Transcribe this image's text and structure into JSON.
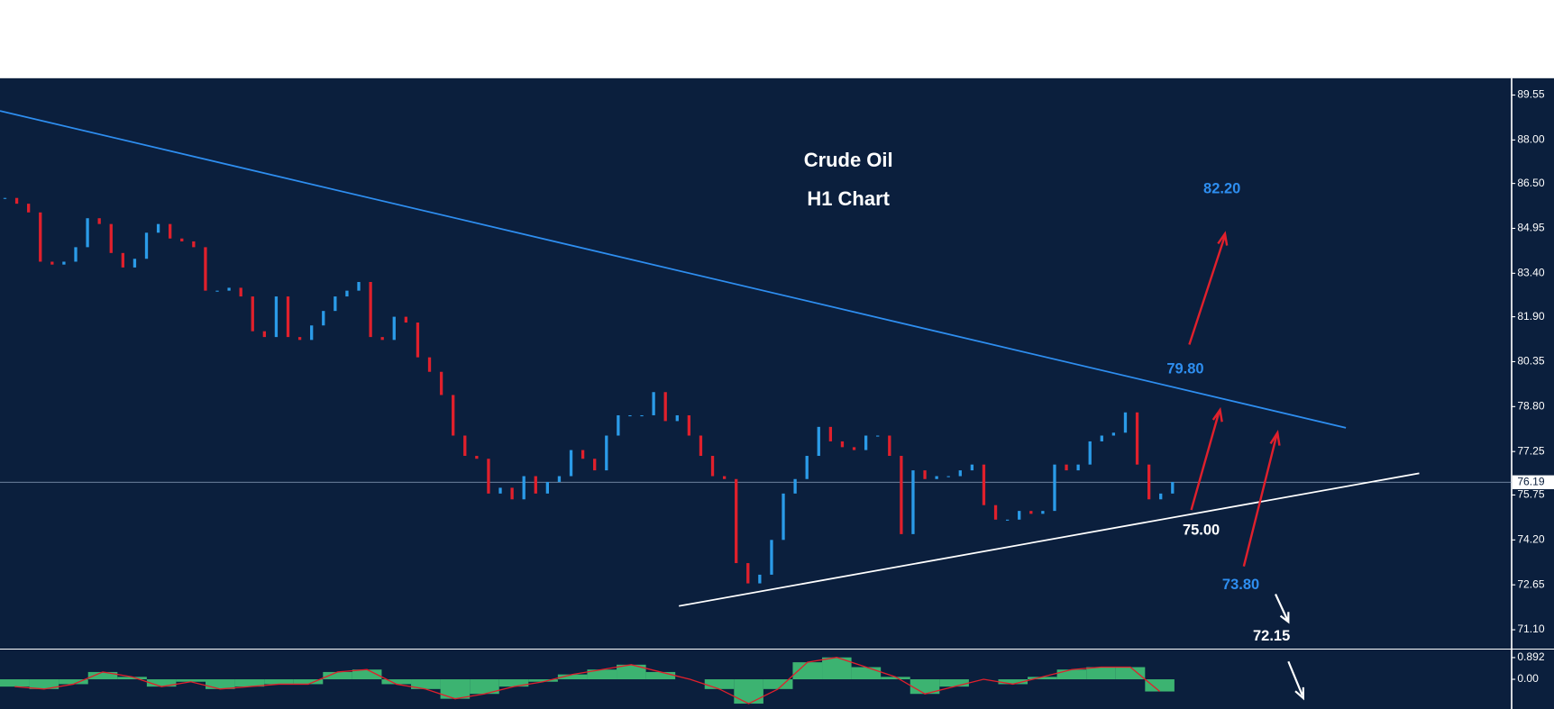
{
  "chart_data": [
    {
      "type": "candlestick",
      "title": "Crude Oil",
      "subtitle": "H1 Chart",
      "values": [
        86.0,
        85.8,
        85.5,
        83.8,
        83.7,
        83.8,
        84.3,
        85.3,
        85.1,
        84.1,
        83.6,
        83.9,
        84.8,
        85.1,
        84.6,
        84.5,
        84.3,
        82.8,
        82.8,
        82.9,
        82.6,
        81.4,
        81.2,
        82.6,
        81.2,
        81.1,
        81.6,
        82.1,
        82.6,
        82.8,
        83.1,
        81.2,
        81.1,
        81.9,
        81.7,
        80.5,
        80.0,
        79.2,
        77.8,
        77.1,
        77.0,
        75.8,
        76.0,
        75.6,
        76.4,
        75.8,
        76.2,
        76.4,
        77.3,
        77.0,
        76.6,
        77.8,
        78.5,
        78.5,
        78.5,
        79.3,
        78.3,
        78.5,
        77.8,
        77.1,
        76.4,
        76.3,
        73.4,
        72.7,
        73.0,
        74.2,
        75.8,
        76.3,
        77.1,
        78.1,
        77.6,
        77.4,
        77.3,
        77.8,
        77.8,
        77.1,
        74.4,
        76.6,
        76.3,
        76.4,
        76.4,
        76.6,
        76.8,
        75.4,
        74.9,
        74.9,
        75.2,
        75.1,
        75.2,
        76.8,
        76.6,
        76.8,
        77.6,
        77.8,
        77.9,
        78.6,
        76.8,
        75.6,
        75.8,
        76.2
      ],
      "up_color": "#2b9be8",
      "down_color": "#e0202c",
      "ylim": [
        70.45,
        90.13
      ],
      "yticks": [
        89.55,
        {
          "value": 88,
          "label": "88.00"
        },
        {
          "value": 86.5,
          "label": "86.50"
        },
        84.95,
        {
          "value": 83.4,
          "label": "83.40"
        },
        {
          "value": 81.9,
          "label": "81.90"
        },
        80.35,
        {
          "value": 78.8,
          "label": "78.80"
        },
        77.25,
        75.75,
        {
          "value": 74.2,
          "label": "74.20"
        },
        72.65,
        {
          "value": 71.1,
          "label": "71.10"
        }
      ],
      "last_price": 76.19,
      "annotations": [
        "82.20",
        "79.80",
        "75.00",
        "73.80",
        "72.15"
      ]
    },
    {
      "type": "bar",
      "values": [
        -0.3,
        -0.4,
        -0.2,
        0.3,
        0.1,
        -0.3,
        -0.1,
        -0.4,
        -0.3,
        -0.2,
        -0.2,
        0.3,
        0.4,
        -0.2,
        -0.4,
        -0.8,
        -0.6,
        -0.3,
        -0.1,
        0.2,
        0.4,
        0.6,
        0.3,
        0.0,
        -0.4,
        -1.0,
        -0.4,
        0.7,
        0.9,
        0.5,
        0.1,
        -0.6,
        -0.3,
        0.0,
        -0.2,
        0.1,
        0.4,
        0.5,
        0.5,
        -0.5
      ],
      "color": "#3cb371",
      "line_color": "#e0202c",
      "ylim": [
        -1.22,
        1.18
      ],
      "yticks": [
        0.892,
        {
          "value": 0,
          "label": "0.00"
        }
      ]
    }
  ]
}
